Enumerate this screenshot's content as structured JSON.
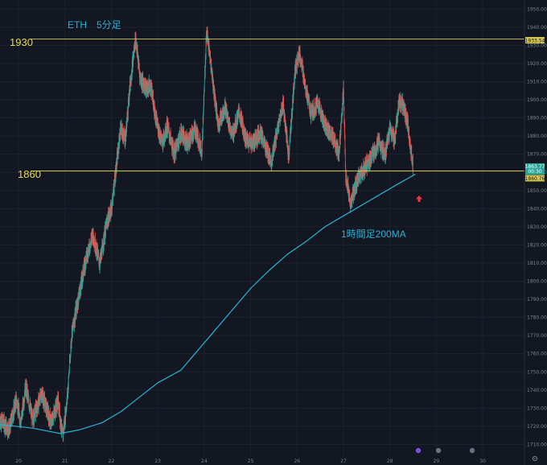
{
  "chart_data": {
    "type": "candlestick",
    "title": "ETH　5分足",
    "ylim": [
      1704,
      1955
    ],
    "y_ticks": [
      1710,
      1720,
      1730,
      1740,
      1750,
      1760,
      1770,
      1780,
      1790,
      1800,
      1810,
      1820,
      1830,
      1840,
      1850,
      1860,
      1870,
      1880,
      1890,
      1900,
      1910,
      1920,
      1930,
      1940,
      1950
    ],
    "x_range_days": [
      19.6,
      30.9
    ],
    "x_ticks": [
      {
        "value": 20,
        "label": "20"
      },
      {
        "value": 21,
        "label": "21"
      },
      {
        "value": 22,
        "label": "22"
      },
      {
        "value": 23,
        "label": "23"
      },
      {
        "value": 24,
        "label": "24"
      },
      {
        "value": 25,
        "label": "25"
      },
      {
        "value": 26,
        "label": "26"
      },
      {
        "value": 27,
        "label": "27"
      },
      {
        "value": 28,
        "label": "28"
      },
      {
        "value": 29,
        "label": "29"
      },
      {
        "value": 30,
        "label": "30"
      }
    ],
    "price_path": [
      [
        19.6,
        1724
      ],
      [
        19.8,
        1718
      ],
      [
        19.95,
        1735
      ],
      [
        20.05,
        1722
      ],
      [
        20.15,
        1742
      ],
      [
        20.3,
        1724
      ],
      [
        20.5,
        1738
      ],
      [
        20.7,
        1722
      ],
      [
        20.85,
        1734
      ],
      [
        20.95,
        1714
      ],
      [
        21.05,
        1736
      ],
      [
        21.15,
        1772
      ],
      [
        21.3,
        1792
      ],
      [
        21.45,
        1812
      ],
      [
        21.6,
        1826
      ],
      [
        21.75,
        1810
      ],
      [
        21.9,
        1832
      ],
      [
        22.0,
        1840
      ],
      [
        22.1,
        1862
      ],
      [
        22.2,
        1884
      ],
      [
        22.3,
        1878
      ],
      [
        22.4,
        1908
      ],
      [
        22.52,
        1934
      ],
      [
        22.62,
        1912
      ],
      [
        22.75,
        1906
      ],
      [
        22.85,
        1908
      ],
      [
        22.95,
        1890
      ],
      [
        23.1,
        1876
      ],
      [
        23.2,
        1886
      ],
      [
        23.35,
        1870
      ],
      [
        23.5,
        1882
      ],
      [
        23.65,
        1876
      ],
      [
        23.8,
        1884
      ],
      [
        23.95,
        1872
      ],
      [
        24.05,
        1938
      ],
      [
        24.15,
        1918
      ],
      [
        24.3,
        1886
      ],
      [
        24.45,
        1896
      ],
      [
        24.6,
        1880
      ],
      [
        24.75,
        1893
      ],
      [
        24.9,
        1878
      ],
      [
        25.05,
        1876
      ],
      [
        25.2,
        1882
      ],
      [
        25.35,
        1872
      ],
      [
        25.45,
        1866
      ],
      [
        25.55,
        1880
      ],
      [
        25.7,
        1898
      ],
      [
        25.82,
        1868
      ],
      [
        25.95,
        1915
      ],
      [
        26.05,
        1926
      ],
      [
        26.15,
        1912
      ],
      [
        26.3,
        1892
      ],
      [
        26.45,
        1898
      ],
      [
        26.6,
        1886
      ],
      [
        26.75,
        1880
      ],
      [
        26.9,
        1870
      ],
      [
        27.0,
        1905
      ],
      [
        27.05,
        1858
      ],
      [
        27.15,
        1842
      ],
      [
        27.3,
        1856
      ],
      [
        27.45,
        1862
      ],
      [
        27.6,
        1868
      ],
      [
        27.75,
        1876
      ],
      [
        27.9,
        1870
      ],
      [
        28.0,
        1884
      ],
      [
        28.1,
        1878
      ],
      [
        28.2,
        1900
      ],
      [
        28.3,
        1896
      ],
      [
        28.4,
        1884
      ],
      [
        28.45,
        1872
      ],
      [
        28.5,
        1864
      ]
    ],
    "series": [
      {
        "name": "1時間足200MA",
        "color": "#26b3d6",
        "points": [
          [
            19.6,
            1721
          ],
          [
            20.3,
            1719
          ],
          [
            20.9,
            1716
          ],
          [
            21.3,
            1718
          ],
          [
            21.8,
            1722
          ],
          [
            22.2,
            1728
          ],
          [
            22.6,
            1736
          ],
          [
            23.0,
            1744
          ],
          [
            23.5,
            1751
          ],
          [
            23.8,
            1760
          ],
          [
            24.2,
            1772
          ],
          [
            24.6,
            1784
          ],
          [
            25.0,
            1796
          ],
          [
            25.4,
            1806
          ],
          [
            25.8,
            1815
          ],
          [
            26.2,
            1822
          ],
          [
            26.6,
            1830
          ],
          [
            27.0,
            1836
          ],
          [
            27.4,
            1842
          ],
          [
            27.8,
            1848
          ],
          [
            28.2,
            1854
          ],
          [
            28.55,
            1859
          ]
        ]
      }
    ],
    "horizontal_lines": [
      {
        "value": 1933.54,
        "color": "#d4c650",
        "label": "1930",
        "axis_label": "1933.54"
      },
      {
        "value": 1860.76,
        "color": "#d4c650",
        "label": "1860",
        "axis_label": "1860.76"
      }
    ],
    "last_price": {
      "value": 1863.77,
      "label": "1863.77",
      "countdown": "00:30"
    },
    "annotations": [
      {
        "text": "1時間足200MA",
        "color": "#26b3d6"
      }
    ],
    "colors": {
      "background": "#131722",
      "up": "#26a69a",
      "down": "#ef5350",
      "arrow": "#f23645",
      "level": "#d4c650"
    }
  }
}
